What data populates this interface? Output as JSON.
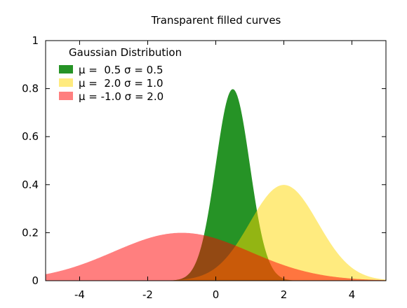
{
  "chart_data": {
    "type": "area",
    "title": "Transparent filled curves",
    "xlabel": "",
    "ylabel": "",
    "xlim": [
      -5,
      5
    ],
    "ylim": [
      0,
      1
    ],
    "xticks": [
      -4,
      -2,
      0,
      2,
      4
    ],
    "yticks": [
      0,
      0.2,
      0.4,
      0.6,
      0.8,
      1
    ],
    "xtick_labels": [
      "-4",
      "-2",
      "0",
      "2",
      "4"
    ],
    "ytick_labels": [
      "0",
      "0.2",
      "0.4",
      "0.6",
      "0.8",
      "1"
    ],
    "grid": false,
    "legend": {
      "title": "Gaussian Distribution",
      "placement": "top-left"
    },
    "series": [
      {
        "name": "μ =  0.5 σ = 0.5",
        "mu": 0.5,
        "sigma": 0.5,
        "color": "#008000",
        "opacity": 0.85
      },
      {
        "name": "μ =  2.0 σ = 1.0",
        "mu": 2.0,
        "sigma": 1.0,
        "color": "#FFD700",
        "opacity": 0.5
      },
      {
        "name": "μ = -1.0 σ = 2.0",
        "mu": -1.0,
        "sigma": 2.0,
        "color": "#FF0000",
        "opacity": 0.5
      }
    ]
  }
}
